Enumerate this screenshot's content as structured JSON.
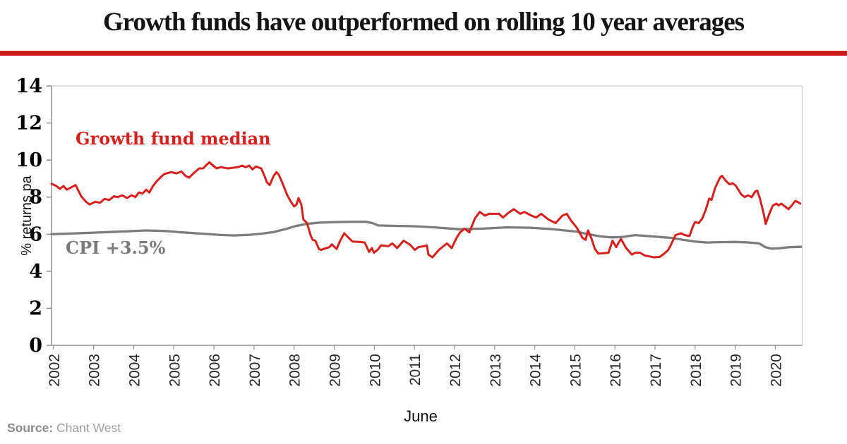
{
  "header": {
    "title": "Growth funds have outperformed on rolling 10 year averages"
  },
  "colors": {
    "title_text": "#141414",
    "title_rule_red": "#cf1a1a",
    "growth_line_red": "#d6201d",
    "cpi_line_gray": "#7d7d7d",
    "cpi_label_gray": "#7a7a7a",
    "axis_gray": "#8f8f8f",
    "plot_border_light": "#c9c9c9"
  },
  "footer": {
    "source_label": "Source:",
    "source_value": "Chant West"
  },
  "chart_data": {
    "type": "line",
    "title": "Growth funds have outperformed on rolling 10 year averages",
    "xlabel": "June",
    "ylabel": "% returns pa",
    "grid": false,
    "legend_position": "inline-labels",
    "xlim": [
      2001.95,
      2020.67
    ],
    "ylim": [
      0,
      14
    ],
    "x_ticks": [
      2002,
      2003,
      2004,
      2005,
      2006,
      2007,
      2008,
      2009,
      2010,
      2011,
      2012,
      2013,
      2014,
      2015,
      2016,
      2017,
      2018,
      2019,
      2020
    ],
    "y_ticks": [
      0,
      2,
      4,
      6,
      8,
      10,
      12,
      14
    ],
    "series": [
      {
        "id": "growth-fund-median",
        "name": "Growth fund median",
        "color": "#d6201d",
        "points": [
          [
            2001.95,
            8.72
          ],
          [
            2002.07,
            8.6
          ],
          [
            2002.16,
            8.45
          ],
          [
            2002.25,
            8.6
          ],
          [
            2002.33,
            8.4
          ],
          [
            2002.42,
            8.5
          ],
          [
            2002.55,
            8.65
          ],
          [
            2002.69,
            8.05
          ],
          [
            2002.81,
            7.75
          ],
          [
            2002.9,
            7.6
          ],
          [
            2003.04,
            7.75
          ],
          [
            2003.16,
            7.7
          ],
          [
            2003.27,
            7.9
          ],
          [
            2003.39,
            7.85
          ],
          [
            2003.51,
            8.05
          ],
          [
            2003.6,
            8.0
          ],
          [
            2003.71,
            8.1
          ],
          [
            2003.83,
            7.95
          ],
          [
            2003.95,
            8.1
          ],
          [
            2004.04,
            8.0
          ],
          [
            2004.13,
            8.25
          ],
          [
            2004.22,
            8.2
          ],
          [
            2004.31,
            8.4
          ],
          [
            2004.39,
            8.25
          ],
          [
            2004.48,
            8.6
          ],
          [
            2004.57,
            8.85
          ],
          [
            2004.66,
            9.05
          ],
          [
            2004.76,
            9.25
          ],
          [
            2004.85,
            9.3
          ],
          [
            2004.94,
            9.35
          ],
          [
            2005.06,
            9.28
          ],
          [
            2005.19,
            9.38
          ],
          [
            2005.29,
            9.15
          ],
          [
            2005.38,
            9.05
          ],
          [
            2005.5,
            9.3
          ],
          [
            2005.63,
            9.55
          ],
          [
            2005.73,
            9.55
          ],
          [
            2005.82,
            9.75
          ],
          [
            2005.89,
            9.88
          ],
          [
            2005.98,
            9.7
          ],
          [
            2006.07,
            9.55
          ],
          [
            2006.17,
            9.62
          ],
          [
            2006.35,
            9.55
          ],
          [
            2006.6,
            9.62
          ],
          [
            2006.7,
            9.7
          ],
          [
            2006.79,
            9.62
          ],
          [
            2006.88,
            9.7
          ],
          [
            2006.96,
            9.5
          ],
          [
            2007.05,
            9.65
          ],
          [
            2007.18,
            9.55
          ],
          [
            2007.26,
            9.15
          ],
          [
            2007.32,
            8.8
          ],
          [
            2007.39,
            8.65
          ],
          [
            2007.44,
            8.9
          ],
          [
            2007.49,
            9.15
          ],
          [
            2007.56,
            9.35
          ],
          [
            2007.62,
            9.2
          ],
          [
            2007.7,
            8.8
          ],
          [
            2007.83,
            8.1
          ],
          [
            2007.92,
            7.75
          ],
          [
            2008.0,
            7.5
          ],
          [
            2008.06,
            7.6
          ],
          [
            2008.11,
            7.95
          ],
          [
            2008.18,
            7.6
          ],
          [
            2008.23,
            6.8
          ],
          [
            2008.32,
            6.6
          ],
          [
            2008.41,
            5.95
          ],
          [
            2008.46,
            5.7
          ],
          [
            2008.53,
            5.65
          ],
          [
            2008.62,
            5.2
          ],
          [
            2008.67,
            5.15
          ],
          [
            2008.8,
            5.25
          ],
          [
            2008.88,
            5.3
          ],
          [
            2008.94,
            5.45
          ],
          [
            2009.06,
            5.2
          ],
          [
            2009.16,
            5.7
          ],
          [
            2009.25,
            6.05
          ],
          [
            2009.36,
            5.8
          ],
          [
            2009.46,
            5.6
          ],
          [
            2009.64,
            5.58
          ],
          [
            2009.76,
            5.55
          ],
          [
            2009.87,
            5.05
          ],
          [
            2009.94,
            5.25
          ],
          [
            2009.99,
            5.0
          ],
          [
            2010.08,
            5.15
          ],
          [
            2010.17,
            5.4
          ],
          [
            2010.35,
            5.35
          ],
          [
            2010.45,
            5.5
          ],
          [
            2010.57,
            5.25
          ],
          [
            2010.73,
            5.65
          ],
          [
            2010.84,
            5.5
          ],
          [
            2010.91,
            5.4
          ],
          [
            2011.01,
            5.15
          ],
          [
            2011.1,
            5.3
          ],
          [
            2011.23,
            5.35
          ],
          [
            2011.31,
            5.4
          ],
          [
            2011.35,
            4.9
          ],
          [
            2011.45,
            4.75
          ],
          [
            2011.61,
            5.15
          ],
          [
            2011.75,
            5.4
          ],
          [
            2011.81,
            5.5
          ],
          [
            2011.93,
            5.25
          ],
          [
            2012.05,
            5.8
          ],
          [
            2012.14,
            6.1
          ],
          [
            2012.25,
            6.3
          ],
          [
            2012.37,
            6.1
          ],
          [
            2012.51,
            6.85
          ],
          [
            2012.63,
            7.2
          ],
          [
            2012.76,
            7.0
          ],
          [
            2012.86,
            7.1
          ],
          [
            2013.11,
            7.1
          ],
          [
            2013.21,
            6.9
          ],
          [
            2013.34,
            7.15
          ],
          [
            2013.48,
            7.35
          ],
          [
            2013.64,
            7.1
          ],
          [
            2013.74,
            7.2
          ],
          [
            2013.92,
            7.0
          ],
          [
            2014.04,
            6.9
          ],
          [
            2014.16,
            7.1
          ],
          [
            2014.34,
            6.8
          ],
          [
            2014.52,
            6.6
          ],
          [
            2014.69,
            7.0
          ],
          [
            2014.8,
            7.1
          ],
          [
            2014.92,
            6.7
          ],
          [
            2015.05,
            6.35
          ],
          [
            2015.19,
            5.8
          ],
          [
            2015.27,
            5.7
          ],
          [
            2015.33,
            6.2
          ],
          [
            2015.41,
            5.8
          ],
          [
            2015.5,
            5.2
          ],
          [
            2015.59,
            4.95
          ],
          [
            2015.84,
            5.0
          ],
          [
            2015.94,
            5.65
          ],
          [
            2016.03,
            5.3
          ],
          [
            2016.15,
            5.75
          ],
          [
            2016.28,
            5.25
          ],
          [
            2016.42,
            4.9
          ],
          [
            2016.51,
            5.0
          ],
          [
            2016.63,
            5.0
          ],
          [
            2016.74,
            4.85
          ],
          [
            2016.86,
            4.8
          ],
          [
            2016.98,
            4.75
          ],
          [
            2017.12,
            4.78
          ],
          [
            2017.23,
            4.95
          ],
          [
            2017.33,
            5.15
          ],
          [
            2017.39,
            5.4
          ],
          [
            2017.51,
            5.95
          ],
          [
            2017.65,
            6.05
          ],
          [
            2017.74,
            5.95
          ],
          [
            2017.86,
            5.9
          ],
          [
            2017.95,
            6.45
          ],
          [
            2018.0,
            6.65
          ],
          [
            2018.09,
            6.6
          ],
          [
            2018.18,
            6.85
          ],
          [
            2018.27,
            7.35
          ],
          [
            2018.35,
            7.92
          ],
          [
            2018.41,
            7.85
          ],
          [
            2018.5,
            8.5
          ],
          [
            2018.62,
            9.05
          ],
          [
            2018.67,
            9.15
          ],
          [
            2018.76,
            8.9
          ],
          [
            2018.85,
            8.7
          ],
          [
            2018.94,
            8.75
          ],
          [
            2019.02,
            8.6
          ],
          [
            2019.15,
            8.15
          ],
          [
            2019.24,
            8.0
          ],
          [
            2019.32,
            8.1
          ],
          [
            2019.41,
            8.0
          ],
          [
            2019.5,
            8.3
          ],
          [
            2019.55,
            8.35
          ],
          [
            2019.62,
            7.9
          ],
          [
            2019.71,
            7.1
          ],
          [
            2019.76,
            6.55
          ],
          [
            2019.85,
            7.1
          ],
          [
            2019.94,
            7.55
          ],
          [
            2020.03,
            7.65
          ],
          [
            2020.08,
            7.55
          ],
          [
            2020.15,
            7.65
          ],
          [
            2020.24,
            7.5
          ],
          [
            2020.33,
            7.35
          ],
          [
            2020.41,
            7.55
          ],
          [
            2020.5,
            7.8
          ],
          [
            2020.59,
            7.7
          ],
          [
            2020.62,
            7.65
          ]
        ]
      },
      {
        "id": "cpi-plus-3-5",
        "name": "CPI +3.5%",
        "color": "#7d7d7d",
        "points": [
          [
            2001.95,
            6.0
          ],
          [
            2002.6,
            6.05
          ],
          [
            2003.2,
            6.1
          ],
          [
            2003.8,
            6.15
          ],
          [
            2004.3,
            6.2
          ],
          [
            2004.8,
            6.17
          ],
          [
            2005.2,
            6.1
          ],
          [
            2005.7,
            6.03
          ],
          [
            2006.1,
            5.97
          ],
          [
            2006.5,
            5.93
          ],
          [
            2006.9,
            5.97
          ],
          [
            2007.2,
            6.03
          ],
          [
            2007.5,
            6.12
          ],
          [
            2007.8,
            6.28
          ],
          [
            2008.0,
            6.42
          ],
          [
            2008.3,
            6.55
          ],
          [
            2008.6,
            6.62
          ],
          [
            2009.0,
            6.65
          ],
          [
            2009.4,
            6.67
          ],
          [
            2009.8,
            6.67
          ],
          [
            2009.95,
            6.6
          ],
          [
            2010.1,
            6.47
          ],
          [
            2010.5,
            6.45
          ],
          [
            2011.0,
            6.43
          ],
          [
            2011.5,
            6.37
          ],
          [
            2012.1,
            6.27
          ],
          [
            2012.7,
            6.3
          ],
          [
            2013.3,
            6.37
          ],
          [
            2013.9,
            6.35
          ],
          [
            2014.45,
            6.27
          ],
          [
            2014.75,
            6.2
          ],
          [
            2015.05,
            6.14
          ],
          [
            2015.33,
            6.0
          ],
          [
            2015.63,
            5.88
          ],
          [
            2015.92,
            5.83
          ],
          [
            2016.2,
            5.85
          ],
          [
            2016.5,
            5.95
          ],
          [
            2016.8,
            5.9
          ],
          [
            2017.1,
            5.85
          ],
          [
            2017.4,
            5.8
          ],
          [
            2017.7,
            5.7
          ],
          [
            2018.0,
            5.6
          ],
          [
            2018.3,
            5.55
          ],
          [
            2018.6,
            5.57
          ],
          [
            2019.0,
            5.58
          ],
          [
            2019.3,
            5.56
          ],
          [
            2019.6,
            5.5
          ],
          [
            2019.75,
            5.3
          ],
          [
            2019.9,
            5.22
          ],
          [
            2020.1,
            5.24
          ],
          [
            2020.35,
            5.3
          ],
          [
            2020.64,
            5.32
          ]
        ]
      }
    ]
  }
}
